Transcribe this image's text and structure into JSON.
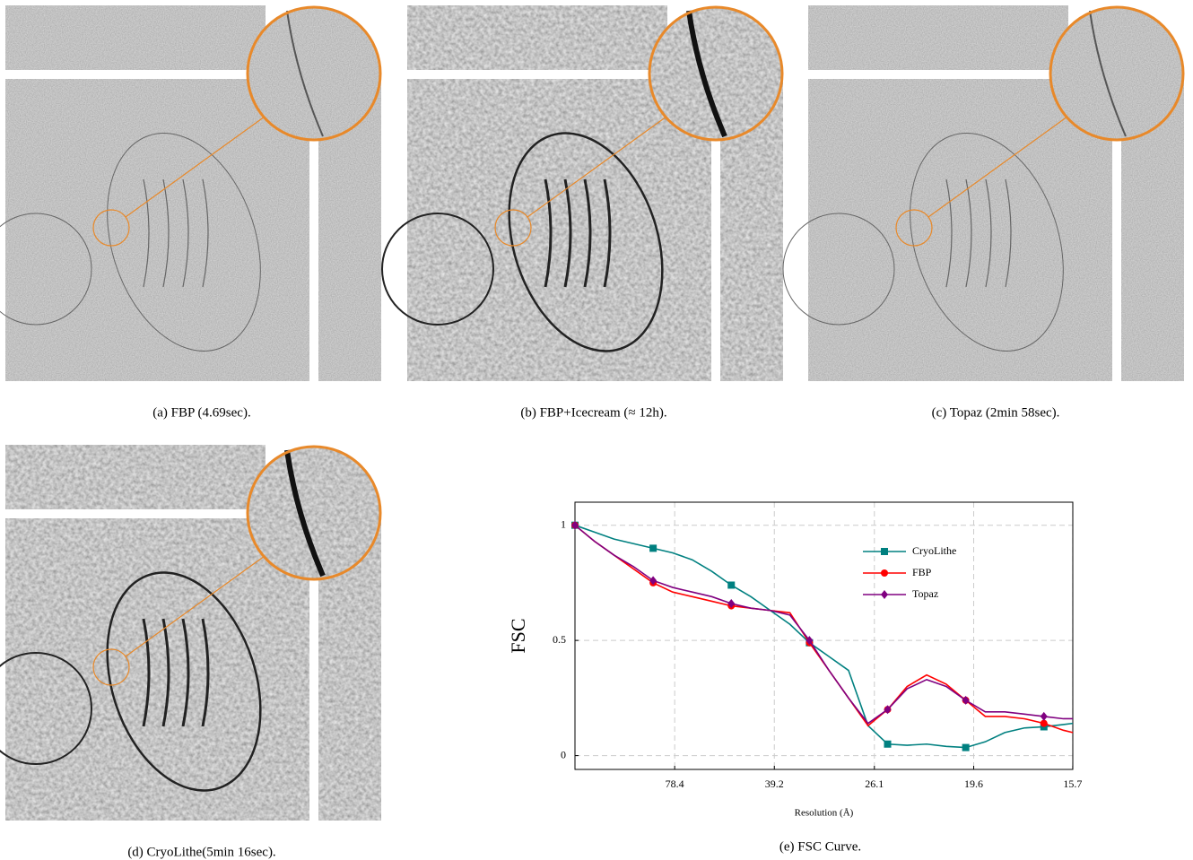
{
  "panels": [
    {
      "caption": "(a) FBP (4.69sec)."
    },
    {
      "caption": "(b) FBP+Icecream (≈ 12h)."
    },
    {
      "caption": "(c) Topaz (2min 58sec)."
    },
    {
      "caption": "(d) CryoLithe(5min 16sec)."
    }
  ],
  "chart_caption": "(e) FSC Curve.",
  "chart_data": {
    "type": "line",
    "xlabel": "Resolution (Å)",
    "ylabel": "FSC",
    "x": [
      0,
      0.0025,
      0.005,
      0.0075,
      0.01,
      0.0125,
      0.015,
      0.0175,
      0.02,
      0.0225,
      0.025,
      0.0275,
      0.03,
      0.0325,
      0.035,
      0.0375,
      0.04,
      0.0425,
      0.045,
      0.0475,
      0.05,
      0.0525,
      0.055,
      0.0575,
      0.06,
      0.0625,
      0.0637
    ],
    "series": [
      {
        "name": "CryoLithe",
        "color": "#008080",
        "marker": "square",
        "values": [
          1.0,
          0.97,
          0.94,
          0.92,
          0.9,
          0.88,
          0.85,
          0.8,
          0.74,
          0.69,
          0.63,
          0.57,
          0.49,
          0.43,
          0.37,
          0.13,
          0.05,
          0.045,
          0.05,
          0.04,
          0.035,
          0.06,
          0.1,
          0.12,
          0.125,
          0.135,
          0.14
        ]
      },
      {
        "name": "FBP",
        "color": "#ff0000",
        "marker": "circle",
        "values": [
          1.0,
          0.93,
          0.87,
          0.81,
          0.75,
          0.71,
          0.69,
          0.67,
          0.65,
          0.64,
          0.63,
          0.62,
          0.49,
          0.37,
          0.25,
          0.13,
          0.2,
          0.3,
          0.35,
          0.31,
          0.24,
          0.17,
          0.17,
          0.16,
          0.14,
          0.11,
          0.1
        ]
      },
      {
        "name": "Topaz",
        "color": "#800080",
        "marker": "diamond",
        "values": [
          1.0,
          0.93,
          0.87,
          0.82,
          0.76,
          0.73,
          0.71,
          0.69,
          0.66,
          0.64,
          0.63,
          0.61,
          0.5,
          0.37,
          0.25,
          0.14,
          0.2,
          0.29,
          0.33,
          0.3,
          0.24,
          0.19,
          0.19,
          0.18,
          0.17,
          0.16,
          0.16
        ]
      }
    ],
    "xlim": [
      0,
      0.0637
    ],
    "xticks": [
      {
        "value": 0.01276,
        "label": "78.4"
      },
      {
        "value": 0.02551,
        "label": "39.2"
      },
      {
        "value": 0.03831,
        "label": "26.1"
      },
      {
        "value": 0.05102,
        "label": "19.6"
      },
      {
        "value": 0.06369,
        "label": "15.7"
      }
    ],
    "ylim": [
      -0.06,
      1.1
    ],
    "yticks": [
      0,
      0.5,
      1
    ],
    "grid": true,
    "legend": "upper right"
  }
}
